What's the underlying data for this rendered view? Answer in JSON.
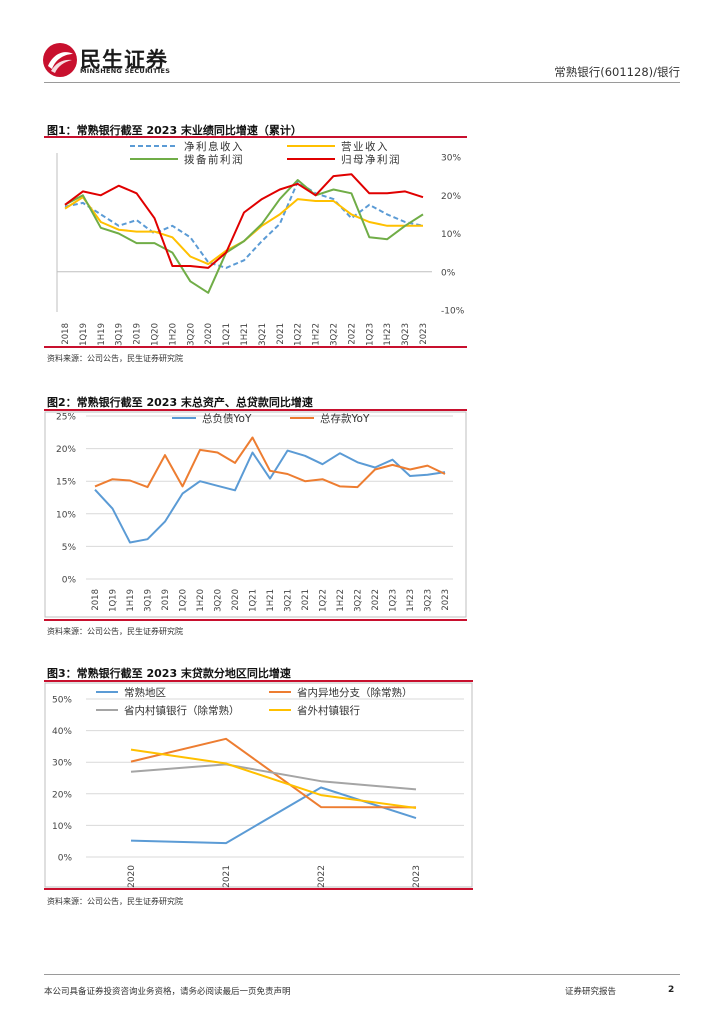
{
  "header": {
    "brand_cn": "民生证券",
    "brand_en": "MINSHENG SECURITIES",
    "doc_ref": "常熟银行(601128)/银行",
    "logo_color": "#c8102e"
  },
  "figures": [
    {
      "title": "图1：常熟银行截至 2023 末业绩同比增速（累计）",
      "source": "资料来源：公司公告，民生证券研究院"
    },
    {
      "title": "图2：常熟银行截至 2023 末总资产、总贷款同比增速",
      "source": "资料来源：公司公告，民生证券研究院"
    },
    {
      "title": "图3：常熟银行截至 2023 末贷款分地区同比增速",
      "source": "资料来源：公司公告，民生证券研究院"
    }
  ],
  "footer": {
    "disclaimer": "本公司具备证券投资咨询业务资格，请务必阅读最后一页免责声明",
    "report_type": "证券研究报告",
    "page_number": "2"
  },
  "chart_data": [
    {
      "type": "line",
      "title": "图1：常熟银行截至 2023 末业绩同比增速（累计）",
      "categories": [
        "2018",
        "1Q19",
        "1H19",
        "3Q19",
        "2019",
        "1Q20",
        "1H20",
        "3Q20",
        "2020",
        "1Q21",
        "1H21",
        "3Q21",
        "2021",
        "1Q22",
        "1H22",
        "3Q22",
        "2022",
        "1Q23",
        "1H23",
        "3Q23",
        "2023"
      ],
      "y_tick_labels": [
        "-10%",
        "0%",
        "10%",
        "20%",
        "30%"
      ],
      "ylim": [
        -10,
        30
      ],
      "y_axis_side": "right",
      "legend_position": "top",
      "series": [
        {
          "name": "净利息收入",
          "color": "#5b9bd5",
          "dash": true,
          "values": [
            17,
            18,
            15,
            12,
            13.5,
            10,
            12,
            9,
            2.5,
            1,
            3,
            8,
            12.5,
            23.5,
            20.5,
            19,
            14,
            17.5,
            15,
            13,
            12
          ]
        },
        {
          "name": "营业收入",
          "color": "#ffc000",
          "dash": false,
          "values": [
            16.5,
            19.5,
            13,
            11,
            10.5,
            10.5,
            9,
            4,
            2,
            5.5,
            8,
            12,
            15,
            19,
            18.5,
            18.5,
            15,
            13,
            12,
            12,
            12
          ]
        },
        {
          "name": "拨备前利润",
          "color": "#70ad47",
          "dash": false,
          "values": [
            17.5,
            20,
            11.5,
            10,
            7.5,
            7.5,
            5,
            -2.5,
            -5.5,
            5,
            8,
            12.5,
            19,
            24,
            20,
            21.5,
            20.5,
            9,
            8.5,
            12,
            15
          ]
        },
        {
          "name": "归母净利润",
          "color": "#e00000",
          "dash": false,
          "values": [
            17.5,
            21,
            20,
            22.5,
            20.5,
            14,
            1.5,
            1.5,
            1,
            5,
            15.5,
            19,
            21.5,
            23,
            20,
            25,
            25.5,
            20.5,
            20.5,
            21,
            19.5
          ]
        }
      ]
    },
    {
      "type": "line",
      "title": "图2：常熟银行截至 2023 末总资产、总贷款同比增速",
      "categories": [
        "2018",
        "1Q19",
        "1H19",
        "3Q19",
        "2019",
        "1Q20",
        "1H20",
        "3Q20",
        "2020",
        "1Q21",
        "1H21",
        "3Q21",
        "2021",
        "1Q22",
        "1H22",
        "3Q22",
        "2022",
        "1Q23",
        "1H23",
        "3Q23",
        "2023"
      ],
      "y_tick_labels": [
        "0%",
        "5%",
        "10%",
        "15%",
        "20%",
        "25%"
      ],
      "ylim": [
        0,
        25
      ],
      "y_axis_side": "left",
      "legend_position": "top",
      "series": [
        {
          "name": "总负债YoY",
          "color": "#5b9bd5",
          "dash": false,
          "values": [
            13.7,
            10.8,
            5.6,
            6.1,
            8.8,
            13.1,
            15,
            14.3,
            13.6,
            19.4,
            15.4,
            19.7,
            18.9,
            17.6,
            19.3,
            17.9,
            17.1,
            18.3,
            15.8,
            16,
            16.4
          ]
        },
        {
          "name": "总存款YoY",
          "color": "#ed7d31",
          "dash": false,
          "values": [
            14.2,
            15.3,
            15.1,
            14.1,
            19,
            14.2,
            19.8,
            19.4,
            17.8,
            21.7,
            16.6,
            16.1,
            15,
            15.3,
            14.2,
            14.1,
            16.8,
            17.5,
            16.8,
            17.4,
            16.1
          ]
        }
      ]
    },
    {
      "type": "line",
      "title": "图3：常熟银行截至 2023 末贷款分地区同比增速",
      "categories": [
        "2020",
        "2021",
        "2022",
        "2023"
      ],
      "y_tick_labels": [
        "0%",
        "10%",
        "20%",
        "30%",
        "40%",
        "50%"
      ],
      "ylim": [
        0,
        50
      ],
      "y_axis_side": "left",
      "legend_position": "top",
      "series": [
        {
          "name": "常熟地区",
          "color": "#5b9bd5",
          "dash": false,
          "values": [
            5.2,
            4.4,
            22,
            12.3
          ]
        },
        {
          "name": "省内异地分支（除常熟）",
          "color": "#ed7d31",
          "dash": false,
          "values": [
            30.2,
            37.4,
            15.8,
            15.7
          ]
        },
        {
          "name": "省内村镇银行（除常熟）",
          "color": "#a5a5a5",
          "dash": false,
          "values": [
            27,
            29.3,
            24,
            21.4
          ]
        },
        {
          "name": "省外村镇银行",
          "color": "#ffc000",
          "dash": false,
          "values": [
            34,
            29.6,
            19.6,
            15.5
          ]
        }
      ]
    }
  ]
}
